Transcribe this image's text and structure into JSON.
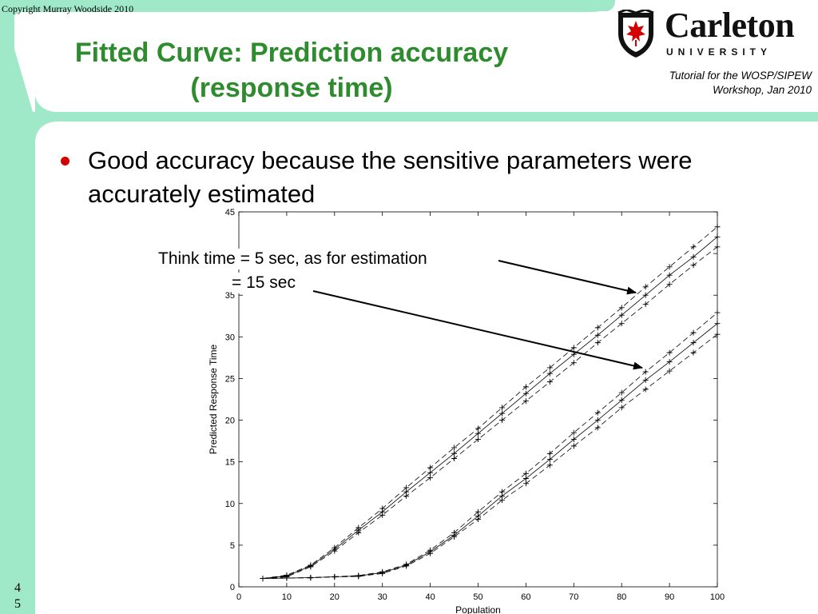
{
  "copyright": "Copyright Murray Woodside 2010",
  "title_line1": "Fitted Curve: Prediction accuracy",
  "title_line2": "(response time)",
  "logo": {
    "name": "Carleton",
    "subtitle": "UNIVERSITY",
    "icon": "carleton-shield-icon"
  },
  "tutorial_line1": "Tutorial for the WOSP/SIPEW",
  "tutorial_line2": "Workshop, Jan 2010",
  "bullet": "Good accuracy because the sensitive parameters were accurately estimated",
  "annotation_line1": "Think time = 5 sec, as for estimation",
  "annotation_line2": "= 15 sec",
  "page_number": {
    "digit1": "4",
    "digit2": "5"
  },
  "colors": {
    "accent_green": "#2e8b2e",
    "background_mint": "#9fe8c8",
    "bullet_red": "#d40000"
  },
  "chart_data": {
    "type": "line",
    "xlabel": "Population",
    "ylabel": "Predicted Response Time",
    "xlim": [
      0,
      100
    ],
    "ylim": [
      0,
      45
    ],
    "xticks": [
      0,
      10,
      20,
      30,
      40,
      50,
      60,
      70,
      80,
      90,
      100
    ],
    "yticks": [
      0,
      5,
      10,
      15,
      20,
      25,
      30,
      35,
      40,
      45
    ],
    "grid": false,
    "x": [
      5,
      10,
      15,
      20,
      25,
      30,
      35,
      40,
      45,
      50,
      55,
      60,
      65,
      70,
      75,
      80,
      85,
      90,
      95,
      100
    ],
    "series": [
      {
        "values": [
          1.0,
          1.3,
          2.5,
          4.5,
          6.8,
          9.0,
          11.4,
          13.7,
          16.0,
          18.4,
          20.8,
          23.2,
          25.6,
          27.9,
          30.2,
          32.6,
          35.0,
          37.4,
          39.6,
          42.0
        ]
      },
      {
        "values": [
          1.0,
          1.4,
          2.6,
          4.7,
          7.1,
          9.4,
          11.9,
          14.3,
          16.7,
          19.0,
          21.5,
          24.0,
          26.3,
          28.7,
          31.1,
          33.5,
          36.0,
          38.4,
          40.8,
          43.2
        ]
      },
      {
        "values": [
          1.0,
          1.2,
          2.4,
          4.3,
          6.5,
          8.6,
          10.9,
          13.1,
          15.4,
          17.7,
          20.0,
          22.3,
          24.6,
          26.9,
          29.3,
          31.6,
          33.9,
          36.3,
          38.6,
          40.8
        ]
      },
      {
        "values": [
          1.0,
          1.05,
          1.1,
          1.2,
          1.3,
          1.7,
          2.6,
          4.2,
          6.2,
          8.5,
          10.9,
          13.0,
          15.3,
          17.7,
          20.0,
          22.4,
          24.8,
          27.0,
          29.3,
          31.6
        ]
      },
      {
        "values": [
          1.0,
          1.05,
          1.12,
          1.22,
          1.35,
          1.8,
          2.7,
          4.4,
          6.5,
          9.0,
          11.4,
          13.6,
          16.0,
          18.5,
          20.9,
          23.3,
          25.8,
          28.1,
          30.5,
          32.9
        ]
      },
      {
        "values": [
          1.0,
          1.05,
          1.08,
          1.18,
          1.25,
          1.6,
          2.5,
          4.0,
          6.0,
          8.1,
          10.4,
          12.4,
          14.6,
          16.9,
          19.1,
          21.5,
          23.7,
          25.9,
          28.1,
          30.3
        ]
      }
    ]
  }
}
